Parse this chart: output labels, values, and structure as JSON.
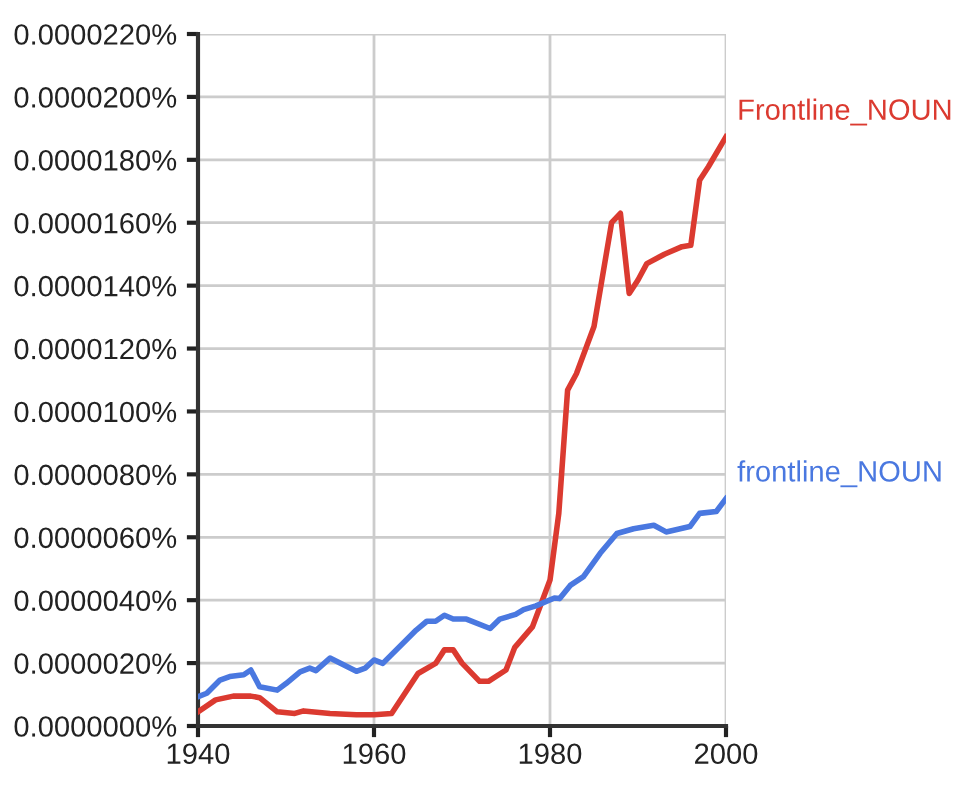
{
  "chart_data": {
    "type": "line",
    "xlim": [
      1940,
      2000
    ],
    "xticks": [
      1940,
      1960,
      1980,
      2000
    ],
    "ylim": [
      0,
      2.2e-05
    ],
    "yticks": [
      {
        "value": 0,
        "label": "0.0000000%"
      },
      {
        "value": 2e-06,
        "label": "0.0000020%"
      },
      {
        "value": 4e-06,
        "label": "0.0000040%"
      },
      {
        "value": 6e-06,
        "label": "0.0000060%"
      },
      {
        "value": 8e-06,
        "label": "0.0000080%"
      },
      {
        "value": 1e-05,
        "label": "0.0000100%"
      },
      {
        "value": 1.2e-05,
        "label": "0.0000120%"
      },
      {
        "value": 1.4e-05,
        "label": "0.0000140%"
      },
      {
        "value": 1.6e-05,
        "label": "0.0000160%"
      },
      {
        "value": 1.8e-05,
        "label": "0.0000180%"
      },
      {
        "value": 2e-05,
        "label": "0.0000200%"
      },
      {
        "value": 2.2e-05,
        "label": "0.0000220%"
      }
    ],
    "grid": true,
    "legend": false,
    "marker": "none",
    "line_style": "solid",
    "series": [
      {
        "name": "Frontline_NOUN",
        "color": "#db3a30",
        "x": [
          1940,
          1942,
          1944,
          1946,
          1947,
          1949,
          1951,
          1952,
          1955,
          1958,
          1960,
          1962,
          1965,
          1967,
          1968,
          1969,
          1970,
          1972,
          1973,
          1975,
          1976,
          1978,
          1980,
          1981,
          1982,
          1983,
          1985,
          1987,
          1988,
          1989,
          1990,
          1991,
          1993,
          1995,
          1996,
          1997,
          1998,
          2000
        ],
        "values": [
          4.5e-07,
          8.3e-07,
          9.5e-07,
          9.5e-07,
          9e-07,
          4.5e-07,
          4e-07,
          4.8e-07,
          4e-07,
          3.6e-07,
          3.6e-07,
          4e-07,
          1.67e-06,
          1.99e-06,
          2.42e-06,
          2.42e-06,
          2e-06,
          1.42e-06,
          1.42e-06,
          1.78e-06,
          2.5e-06,
          3.15e-06,
          4.64e-06,
          6.76e-06,
          1.068e-05,
          1.12e-05,
          1.27e-05,
          1.6e-05,
          1.63e-05,
          1.375e-05,
          1.418e-05,
          1.47e-05,
          1.5e-05,
          1.524e-05,
          1.528e-05,
          1.735e-05,
          1.778e-05,
          1.873e-05
        ]
      },
      {
        "name": "frontline_NOUN",
        "color": "#4a78e0",
        "x": [
          1940,
          1941,
          1942.5,
          1943.6,
          1945.2,
          1946,
          1947,
          1949,
          1950,
          1951.6,
          1952.7,
          1953.4,
          1955,
          1958,
          1959,
          1960,
          1961,
          1964.8,
          1966,
          1967,
          1968,
          1969,
          1970.5,
          1973.2,
          1974.3,
          1976.1,
          1977,
          1978.4,
          1980.5,
          1981.1,
          1982.3,
          1983.8,
          1985.7,
          1987.6,
          1989.5,
          1991.8,
          1993.2,
          1995.9,
          1997,
          1998.9,
          2000
        ],
        "values": [
          9.3e-07,
          1.04e-06,
          1.46e-06,
          1.57e-06,
          1.63e-06,
          1.78e-06,
          1.25e-06,
          1.14e-06,
          1.35e-06,
          1.72e-06,
          1.84e-06,
          1.76e-06,
          2.16e-06,
          1.74e-06,
          1.84e-06,
          2.1e-06,
          1.99e-06,
          3.05e-06,
          3.33e-06,
          3.33e-06,
          3.52e-06,
          3.4e-06,
          3.4e-06,
          3.1e-06,
          3.4e-06,
          3.55e-06,
          3.7e-06,
          3.82e-06,
          4.07e-06,
          4.05e-06,
          4.47e-06,
          4.75e-06,
          5.49e-06,
          6.12e-06,
          6.27e-06,
          6.38e-06,
          6.17e-06,
          6.34e-06,
          6.76e-06,
          6.82e-06,
          7.23e-06
        ]
      }
    ]
  }
}
